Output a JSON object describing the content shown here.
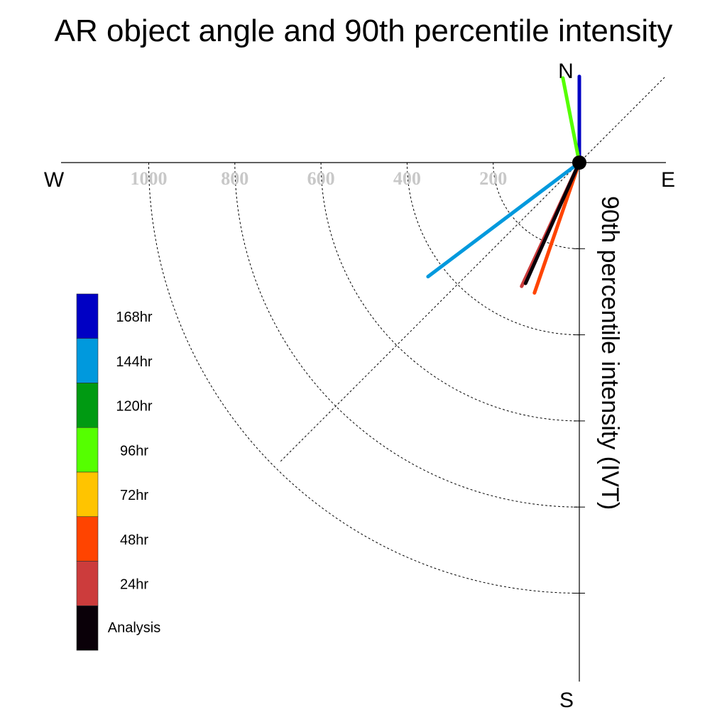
{
  "chart_data": {
    "type": "polar-vector",
    "title": "AR object angle and 90th percentile intensity",
    "compass": {
      "north": "N",
      "south": "S",
      "east": "E",
      "west": "W"
    },
    "radial_axis_label": "90th percentile intensity (IVT)",
    "ring_values": [
      200,
      400,
      600,
      800,
      1000
    ],
    "ring_labels": [
      "200",
      "400",
      "600",
      "800",
      "1000"
    ],
    "radial_max": 1200,
    "series": [
      {
        "name": "168hr",
        "color": "#0000c4",
        "vectors": [
          {
            "angle_deg": 0,
            "intensity": 200
          }
        ]
      },
      {
        "name": "144hr",
        "color": "#0099dd",
        "vectors": [
          {
            "angle_deg": 233,
            "intensity": 440
          }
        ]
      },
      {
        "name": "120hr",
        "color": "#009a12",
        "vectors": []
      },
      {
        "name": "96hr",
        "color": "#55ff00",
        "vectors": [
          {
            "angle_deg": 349,
            "intensity": 200
          }
        ]
      },
      {
        "name": "72hr",
        "color": "#ffc400",
        "vectors": []
      },
      {
        "name": "48hr",
        "color": "#ff4400",
        "vectors": [
          {
            "angle_deg": 199,
            "intensity": 320
          }
        ]
      },
      {
        "name": "24hr",
        "color": "#cc3c3c",
        "vectors": [
          {
            "angle_deg": 205,
            "intensity": 317
          }
        ]
      },
      {
        "name": "Analysis",
        "color": "#0a0008",
        "vectors": [
          {
            "angle_deg": 204,
            "intensity": 307
          }
        ]
      }
    ]
  }
}
